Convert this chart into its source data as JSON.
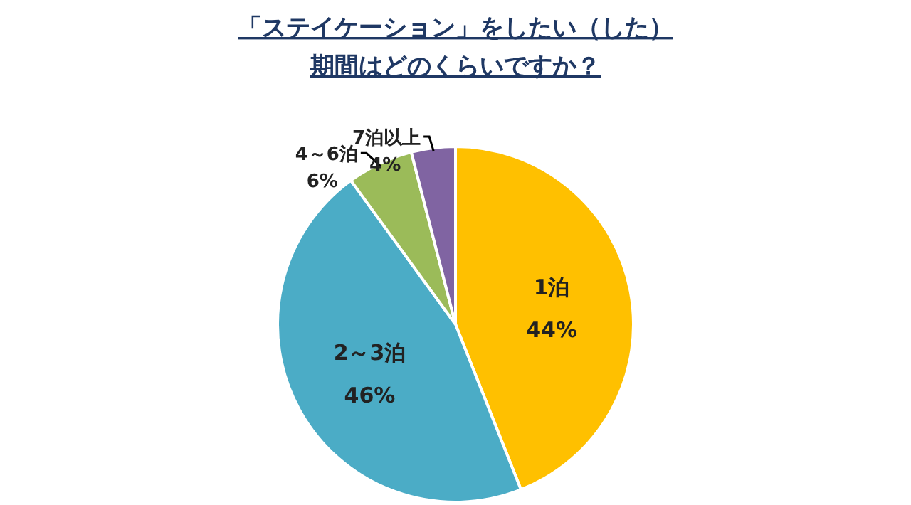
{
  "chart_data": {
    "type": "pie",
    "title": "「ステイケーション」をしたい（した）",
    "subtitle": "期間はどのくらいですか？",
    "categories": [
      "1泊",
      "2～3泊",
      "4～6泊",
      "7泊以上"
    ],
    "values": [
      44,
      46,
      6,
      4
    ],
    "value_labels": [
      "44%",
      "46%",
      "6%",
      "4%"
    ],
    "colors": [
      "#ffc000",
      "#4bacc6",
      "#9bbb59",
      "#8064a2"
    ]
  }
}
